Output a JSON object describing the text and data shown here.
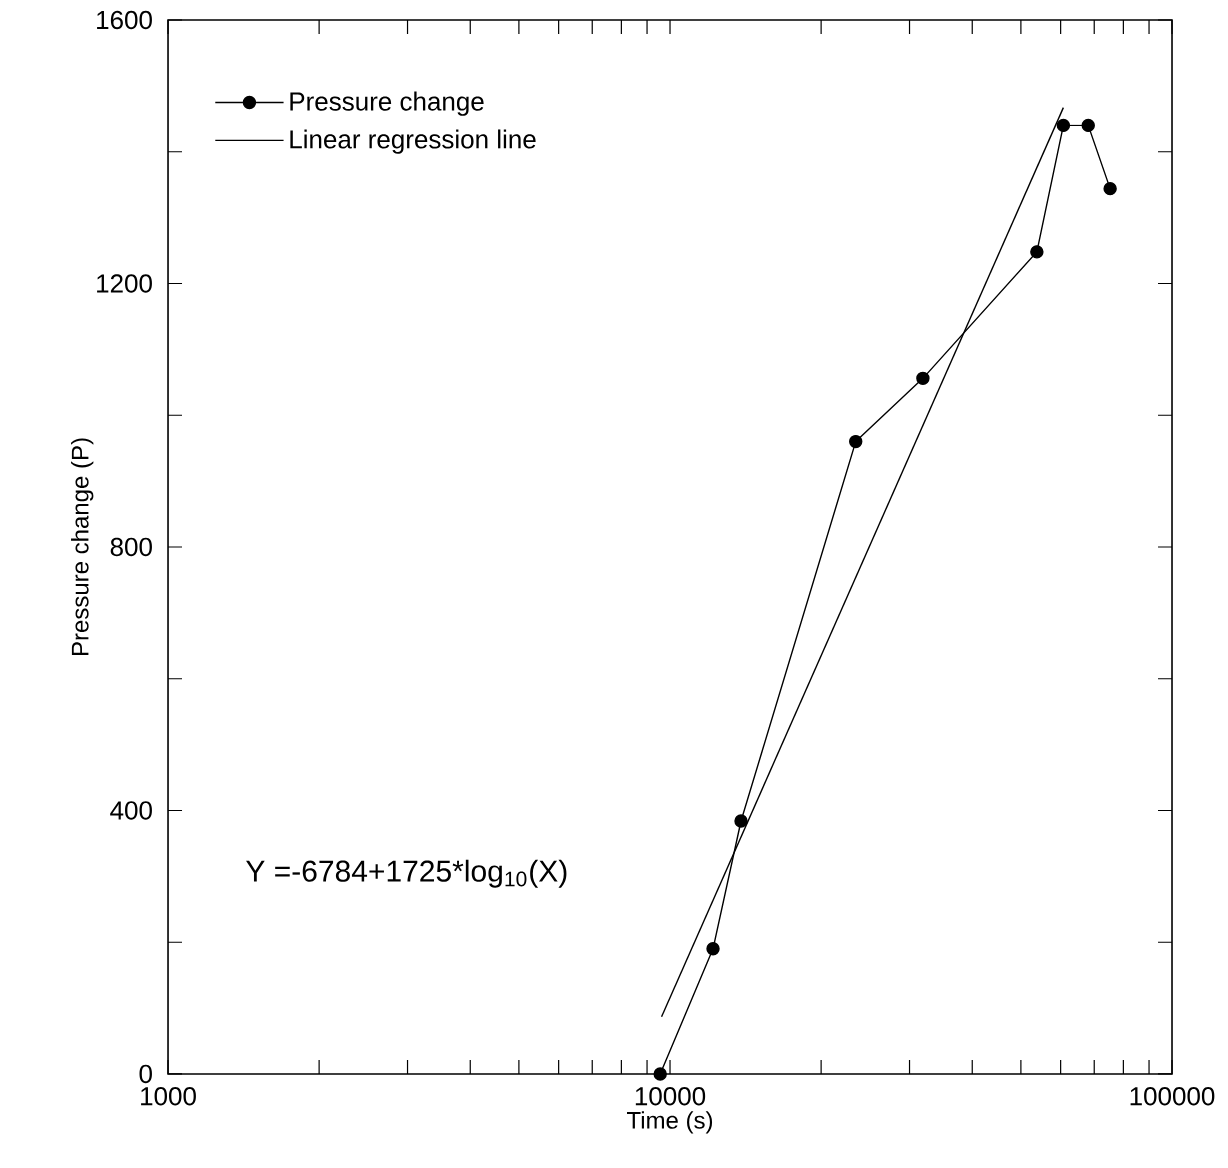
{
  "chart_data": {
    "type": "line",
    "xlabel": "Time (s)",
    "ylabel": "Pressure change (P)",
    "log": "x",
    "xlim": [
      1000,
      100000
    ],
    "xticks": [
      1000,
      10000,
      100000
    ],
    "ylim": [
      0,
      1600
    ],
    "yticks": [
      0,
      {
        "value": 200,
        "label": null
      },
      400,
      {
        "value": 600,
        "label": null
      },
      800,
      {
        "value": 1000,
        "label": null
      },
      1200,
      {
        "value": 1400,
        "label": null
      },
      1600
    ],
    "grid": false,
    "legend": "top left",
    "series": [
      {
        "name": "Pressure change",
        "color": "#000000",
        "marker": "circle",
        "x": [
          9560,
          12180,
          13850,
          23440,
          31900,
          53800,
          60760,
          68100,
          75300
        ],
        "values": [
          0,
          190,
          384,
          960,
          1056,
          1248,
          1440,
          1440,
          1344
        ]
      },
      {
        "name": "Linear regression line",
        "color": "#000000",
        "marker": "none",
        "x": [
          9620,
          60760
        ],
        "values": [
          87,
          1467
        ]
      }
    ],
    "annotations": [
      "Y =-6784+1725*log$_{10}$(X)"
    ]
  }
}
